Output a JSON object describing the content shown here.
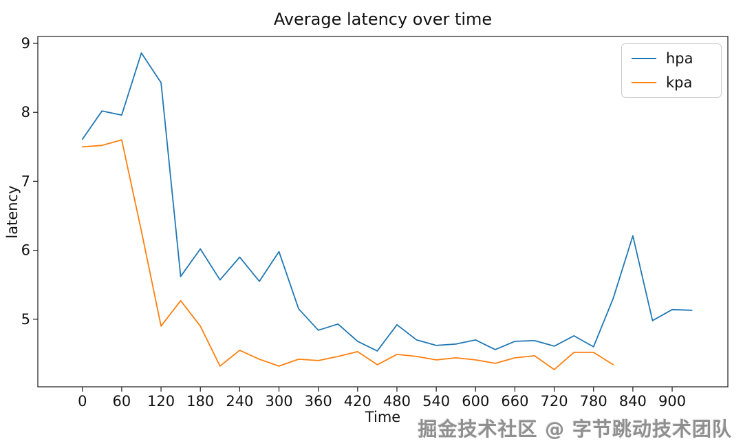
{
  "chart_data": {
    "type": "line",
    "title": "Average latency over time",
    "xlabel": "Time",
    "ylabel": "latency",
    "x_ticks": [
      0,
      60,
      120,
      180,
      240,
      300,
      360,
      420,
      480,
      540,
      600,
      660,
      720,
      780,
      840,
      900
    ],
    "y_ticks": [
      5,
      6,
      7,
      8,
      9
    ],
    "xlim": [
      -68,
      985
    ],
    "ylim": [
      4.02,
      9.1
    ],
    "grid": false,
    "legend_position": "upper right",
    "series": [
      {
        "name": "hpa",
        "color": "#1f77b4",
        "x": [
          0,
          30,
          60,
          90,
          120,
          150,
          180,
          210,
          240,
          270,
          300,
          330,
          360,
          390,
          420,
          450,
          480,
          510,
          540,
          570,
          600,
          630,
          660,
          690,
          720,
          750,
          780,
          810,
          840,
          870,
          900,
          930
        ],
        "y": [
          7.61,
          8.02,
          7.96,
          8.86,
          8.43,
          5.62,
          6.02,
          5.57,
          5.9,
          5.55,
          5.98,
          5.15,
          4.84,
          4.93,
          4.68,
          4.54,
          4.92,
          4.7,
          4.62,
          4.64,
          4.7,
          4.56,
          4.68,
          4.69,
          4.61,
          4.76,
          4.6,
          5.3,
          6.21,
          4.98,
          5.14,
          5.13
        ]
      },
      {
        "name": "kpa",
        "color": "#ff7f0e",
        "x": [
          0,
          30,
          60,
          90,
          120,
          150,
          180,
          210,
          240,
          270,
          300,
          330,
          360,
          390,
          420,
          450,
          480,
          510,
          540,
          570,
          600,
          630,
          660,
          690,
          720,
          750,
          780,
          810
        ],
        "y": [
          7.5,
          7.52,
          7.6,
          6.28,
          4.9,
          5.27,
          4.9,
          4.32,
          4.55,
          4.42,
          4.32,
          4.42,
          4.4,
          4.46,
          4.53,
          4.34,
          4.49,
          4.46,
          4.41,
          4.44,
          4.41,
          4.36,
          4.44,
          4.47,
          4.27,
          4.52,
          4.52,
          4.34
        ]
      }
    ]
  },
  "watermark_text": "掘金技术社区 @ 字节跳动技术团队"
}
